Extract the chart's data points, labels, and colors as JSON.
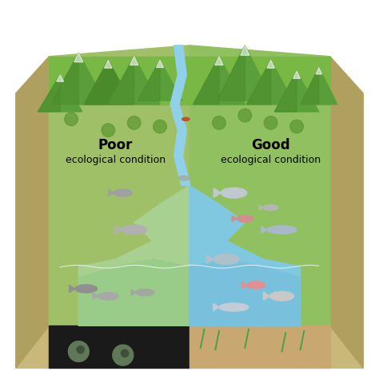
{
  "title": "",
  "left_label_line1": "Poor",
  "left_label_line2": "ecological condition",
  "right_label_line1": "Good",
  "right_label_line2": "ecological condition",
  "mountain_color": "#5a9e3a",
  "mountain_shadow": "#4a8a2a",
  "water_river_color": "#90d0e8",
  "bottom_left_color": "#1a1a1a",
  "bottom_right_color": "#c8a870",
  "fig_width": 4.74,
  "fig_height": 4.65,
  "dpi": 100
}
